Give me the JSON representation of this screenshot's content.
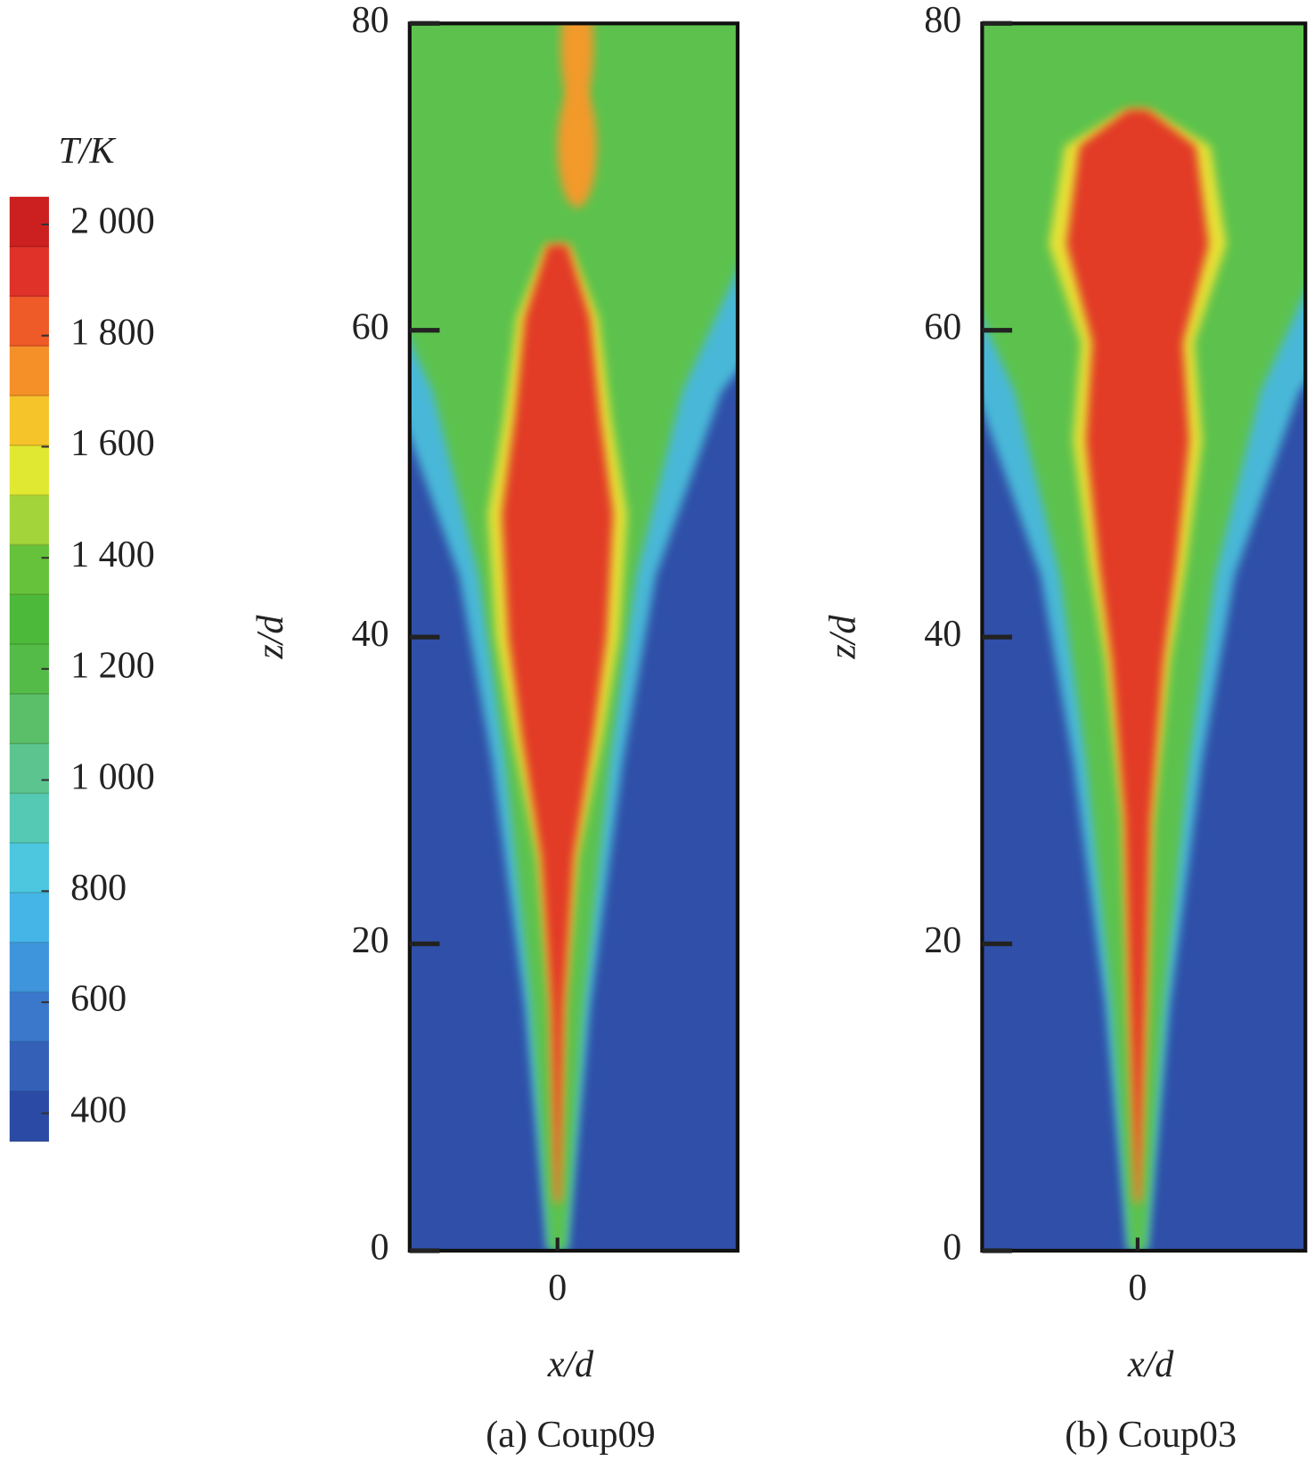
{
  "colorbar": {
    "title": "T/K",
    "lim": [
      350,
      2050
    ],
    "ticks": [
      400,
      600,
      800,
      {
        "value": 1000,
        "label": "1 000"
      },
      {
        "value": 1200,
        "label": "1 200"
      },
      {
        "value": 1400,
        "label": "1 400"
      },
      {
        "value": 1600,
        "label": "1 600"
      },
      {
        "value": 1800,
        "label": "1 800"
      },
      {
        "value": 2000,
        "label": "2 000"
      }
    ],
    "colors": [
      "#2b4aa6",
      "#3460b8",
      "#3b78cc",
      "#3f95dc",
      "#45b4e6",
      "#4cc7df",
      "#55c9b4",
      "#5cc58f",
      "#5bbf6a",
      "#55bb48",
      "#4db93a",
      "#66c23a",
      "#a3d43a",
      "#e0e832",
      "#f5c42a",
      "#f59028",
      "#ee5a28",
      "#e03228",
      "#cc2020"
    ]
  },
  "chart_data": [
    {
      "type": "contour",
      "title": "(a) Coup09",
      "xlabel": "x/d",
      "ylabel": "z/d",
      "xlim": [
        -9.6,
        11.7
      ],
      "xticks": [
        0
      ],
      "ylim": [
        0,
        80
      ],
      "yticks": [
        0,
        20,
        40,
        60,
        80
      ]
    },
    {
      "type": "contour",
      "title": "(b) Coup03",
      "xlabel": "x/d",
      "ylabel": "z/d",
      "xlim": [
        -10.1,
        10.9
      ],
      "xticks": [
        0
      ],
      "ylim": [
        0,
        80
      ],
      "yticks": [
        0,
        20,
        40,
        60,
        80
      ]
    }
  ]
}
